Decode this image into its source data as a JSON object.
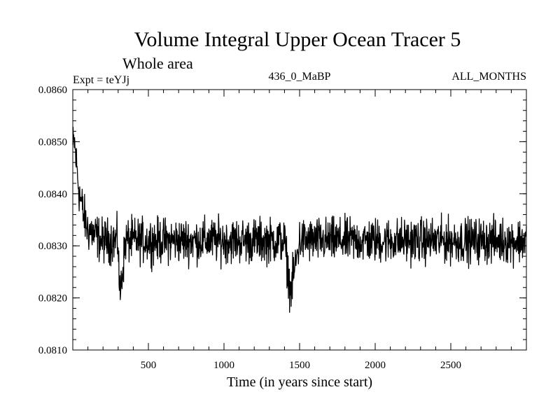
{
  "chart_data": {
    "type": "line",
    "title": "Volume Integral Upper Ocean Tracer 5",
    "subtitle": "Whole area",
    "expt_label": "Expt = teYJj",
    "period_label": "436_0_MaBP",
    "months_label": "ALL_MONTHS",
    "xlabel": "Time (in years since start)",
    "ylabel": "",
    "xlim": [
      0,
      3000
    ],
    "ylim": [
      0.081,
      0.086
    ],
    "x_ticks": [
      500,
      1000,
      1500,
      2000,
      2500
    ],
    "x_tick_labels": [
      "500",
      "1000",
      "1500",
      "2000",
      "2500"
    ],
    "y_ticks": [
      0.081,
      0.082,
      0.083,
      0.084,
      0.085,
      0.086
    ],
    "y_tick_labels": [
      "0.0810",
      "0.0820",
      "0.0830",
      "0.0840",
      "0.0850",
      "0.0860"
    ],
    "series": [
      {
        "name": "Tracer 5",
        "color": "#000000",
        "x": [
          0,
          10,
          20,
          30,
          40,
          50,
          60,
          70,
          80,
          90,
          100,
          120,
          140,
          160,
          180,
          200,
          250,
          300,
          310,
          350,
          400,
          500,
          600,
          700,
          800,
          900,
          1000,
          1100,
          1200,
          1300,
          1400,
          1440,
          1500,
          1600,
          1700,
          1800,
          1900,
          2000,
          2100,
          2200,
          2300,
          2400,
          2500,
          2600,
          2700,
          2800,
          2900,
          3000
        ],
        "values": [
          0.0849,
          0.085,
          0.0847,
          0.0844,
          0.0841,
          0.0839,
          0.0838,
          0.0836,
          0.0835,
          0.0834,
          0.0833,
          0.0833,
          0.0832,
          0.0832,
          0.0831,
          0.0831,
          0.0831,
          0.0831,
          0.082,
          0.0831,
          0.0831,
          0.0831,
          0.0831,
          0.0831,
          0.0831,
          0.0831,
          0.0831,
          0.0831,
          0.0831,
          0.0831,
          0.0831,
          0.0821,
          0.0831,
          0.0831,
          0.0831,
          0.0831,
          0.0831,
          0.0831,
          0.0831,
          0.0831,
          0.0831,
          0.0831,
          0.0831,
          0.0831,
          0.0831,
          0.0831,
          0.0831,
          0.0831
        ],
        "noise_amplitude": 0.0003
      }
    ]
  }
}
